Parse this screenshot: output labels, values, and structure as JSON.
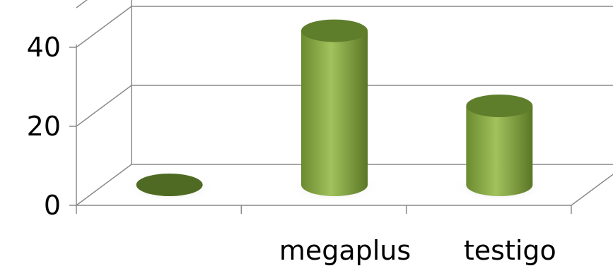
{
  "chart_data": {
    "type": "bar",
    "style": "3d-cylinder",
    "categories": [
      "",
      "megaplus",
      "testigo"
    ],
    "series": [
      {
        "values": [
          0,
          39,
          20
        ]
      }
    ],
    "y_ticks": [
      "0",
      "20",
      "40"
    ],
    "ylim": [
      0,
      50
    ],
    "grid": true,
    "legend": "none",
    "colors": {
      "bar_light": "#9cbf57",
      "bar_mid": "#7a9a3b",
      "bar_dark": "#4f6a22",
      "bar_top": "#5f7e2c",
      "grid": "#8a8a8a"
    }
  }
}
